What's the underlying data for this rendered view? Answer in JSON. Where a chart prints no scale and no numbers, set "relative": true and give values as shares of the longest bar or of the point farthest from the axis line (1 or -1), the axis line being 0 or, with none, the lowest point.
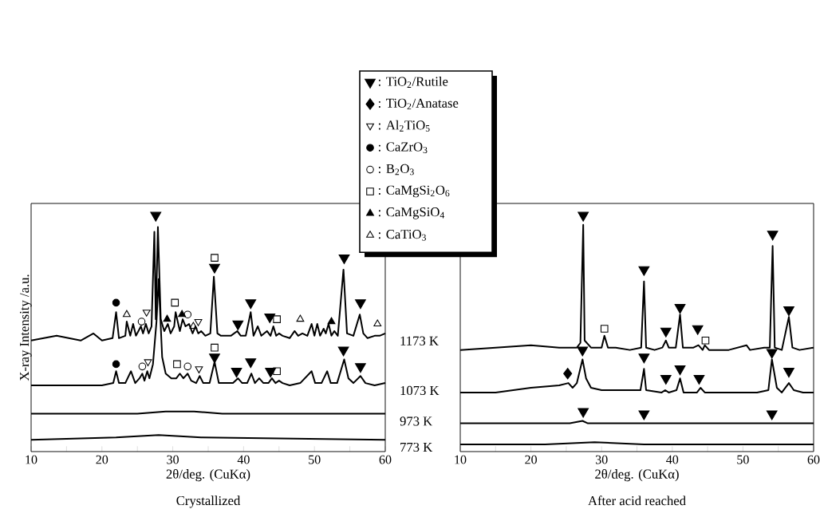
{
  "chart_data": [
    {
      "type": "line",
      "title": "Crystallized",
      "xlabel": "2θ/deg. (CuKα)",
      "ylabel": "X-ray Intensity /a.u.",
      "relative": true,
      "xlim": [
        10,
        60
      ],
      "xticks": [
        10,
        {
          "value": 15,
          "label": null
        },
        20,
        {
          "value": 25,
          "label": null
        },
        30,
        {
          "value": 35,
          "label": null
        },
        40,
        {
          "value": 45,
          "label": null
        },
        50,
        {
          "value": 55,
          "label": null
        },
        60
      ],
      "legend": "top right",
      "line_style": "solid",
      "grid": false,
      "series": [
        {
          "name": "1173 K",
          "color": "#000000",
          "x": [
            10,
            13.6,
            17,
            18.8,
            20,
            21.5,
            22.0,
            22.4,
            23.3,
            23.5,
            24,
            24.4,
            24.8,
            25.5,
            25.8,
            26.2,
            26.6,
            27.0,
            27.4,
            27.6,
            27.9,
            28.3,
            28.8,
            29.3,
            29.7,
            30.2,
            30.4,
            31.0,
            31.4,
            31.8,
            32.3,
            32.8,
            33.2,
            33.6,
            34.0,
            34.6,
            35.3,
            35.8,
            36.3,
            36.8,
            37.5,
            38.2,
            39.1,
            39.6,
            40.3,
            41.0,
            41.4,
            42.0,
            42.5,
            43.3,
            43.8,
            44.2,
            44.6,
            45.0,
            45.5,
            46.5,
            47.2,
            47.7,
            48.3,
            49.0,
            49.6,
            50.0,
            50.4,
            50.8,
            51.3,
            51.6,
            52.0,
            52.4,
            52.8,
            53.3,
            54.1,
            54.6,
            55.5,
            56.4,
            56.9,
            57.5,
            58.5,
            59.2,
            60
          ],
          "values": [
            0.47,
            0.49,
            0.47,
            0.5,
            0.47,
            0.48,
            0.59,
            0.48,
            0.49,
            0.55,
            0.49,
            0.54,
            0.49,
            0.53,
            0.5,
            0.54,
            0.5,
            0.53,
            0.93,
            0.56,
            0.95,
            0.56,
            0.51,
            0.54,
            0.5,
            0.53,
            0.59,
            0.51,
            0.56,
            0.53,
            0.54,
            0.5,
            0.53,
            0.5,
            0.51,
            0.49,
            0.5,
            0.74,
            0.5,
            0.49,
            0.49,
            0.49,
            0.51,
            0.49,
            0.49,
            0.59,
            0.49,
            0.53,
            0.49,
            0.51,
            0.49,
            0.53,
            0.49,
            0.5,
            0.49,
            0.48,
            0.51,
            0.49,
            0.5,
            0.49,
            0.54,
            0.49,
            0.54,
            0.49,
            0.52,
            0.5,
            0.54,
            0.49,
            0.51,
            0.49,
            0.77,
            0.5,
            0.49,
            0.58,
            0.5,
            0.48,
            0.49,
            0.49,
            0.5
          ]
        },
        {
          "name": "1073 K",
          "color": "#000000",
          "x": [
            10,
            15,
            20,
            21.6,
            22.0,
            22.4,
            23.3,
            24.1,
            24.7,
            25.3,
            25.7,
            26.0,
            26.4,
            26.7,
            27.2,
            27.7,
            28.0,
            28.5,
            29.0,
            29.8,
            30.5,
            31.0,
            31.5,
            32.1,
            32.6,
            33.3,
            33.8,
            34.3,
            35.2,
            35.9,
            36.5,
            37.5,
            38.5,
            39.2,
            39.8,
            40.5,
            41.1,
            41.6,
            42.2,
            42.8,
            43.5,
            44.0,
            44.5,
            45.0,
            45.5,
            46.5,
            48,
            49.6,
            50.1,
            51.0,
            51.8,
            52.3,
            53.2,
            54.2,
            54.8,
            55.5,
            56.5,
            57.2,
            58.5,
            60
          ],
          "values": [
            0.28,
            0.28,
            0.28,
            0.29,
            0.34,
            0.29,
            0.29,
            0.34,
            0.29,
            0.31,
            0.33,
            0.3,
            0.34,
            0.31,
            0.37,
            0.55,
            0.73,
            0.4,
            0.33,
            0.31,
            0.31,
            0.33,
            0.31,
            0.33,
            0.3,
            0.29,
            0.32,
            0.29,
            0.29,
            0.38,
            0.29,
            0.29,
            0.29,
            0.31,
            0.29,
            0.29,
            0.33,
            0.29,
            0.31,
            0.29,
            0.29,
            0.31,
            0.29,
            0.3,
            0.29,
            0.28,
            0.29,
            0.34,
            0.29,
            0.29,
            0.34,
            0.29,
            0.29,
            0.39,
            0.31,
            0.29,
            0.32,
            0.29,
            0.28,
            0.29
          ]
        },
        {
          "name": "973 K",
          "color": "#000000",
          "x": [
            10,
            20,
            25,
            29,
            33,
            37,
            45,
            60
          ],
          "values": [
            0.16,
            0.16,
            0.16,
            0.17,
            0.17,
            0.16,
            0.16,
            0.16
          ]
        },
        {
          "name": "773 K",
          "color": "#000000",
          "x": [
            10,
            22,
            28,
            34,
            60
          ],
          "values": [
            0.05,
            0.06,
            0.07,
            0.06,
            0.05
          ]
        },
        {
          "name": ": TiO$_{2}$/Rutile",
          "type": "scatter",
          "marker": "triangle-down",
          "color": "#000000",
          "x": [
            27.6,
            35.9,
            39.2,
            41.0,
            43.7,
            54.2,
            56.5,
            35.9,
            39.0,
            41.0,
            43.8,
            54.1,
            56.5
          ],
          "values": [
            1.0,
            0.78,
            0.54,
            0.63,
            0.57,
            0.82,
            0.63,
            0.4,
            0.34,
            0.38,
            0.34,
            0.43,
            0.36
          ]
        },
        {
          "name": ": Al$_{2}$TiO$_{5}$",
          "type": "scatter",
          "marker": "triangle-down-open",
          "color": "#000000",
          "x": [
            26.3,
            33.6,
            26.5,
            33.7
          ],
          "values": [
            0.59,
            0.55,
            0.38,
            0.35
          ]
        },
        {
          "name": ": CaZrO$_{3}$",
          "type": "scatter",
          "marker": "circle",
          "color": "#000000",
          "x": [
            22.0,
            22.0
          ],
          "values": [
            0.63,
            0.37
          ]
        },
        {
          "name": ": B$_{2}$O$_{3}$",
          "type": "scatter",
          "marker": "circle-open",
          "color": "#000000",
          "x": [
            25.6,
            32.1,
            25.7,
            32.1
          ],
          "values": [
            0.55,
            0.58,
            0.36,
            0.36
          ]
        },
        {
          "name": ": CaMgSi$_{2}$O$_{6}$",
          "type": "scatter",
          "marker": "square-open",
          "color": "#000000",
          "x": [
            35.9,
            30.3,
            44.7,
            35.9,
            30.6,
            44.7
          ],
          "values": [
            0.82,
            0.63,
            0.56,
            0.44,
            0.37,
            0.34
          ]
        },
        {
          "name": ": CaMgSiO$_{4}$",
          "type": "scatter",
          "marker": "triangle",
          "color": "#000000",
          "x": [
            29.2,
            31.3,
            52.4
          ],
          "values": [
            0.56,
            0.58,
            0.55
          ]
        },
        {
          "name": ": CaTiO$_{3}$",
          "type": "scatter",
          "marker": "triangle-open",
          "color": "#000000",
          "x": [
            23.5,
            32.9,
            48.0,
            58.9
          ],
          "values": [
            0.58,
            0.53,
            0.56,
            0.54
          ]
        }
      ]
    },
    {
      "type": "line",
      "title": "After acid reached",
      "xlabel": "2θ/deg. (CuKα)",
      "relative": true,
      "xlim": [
        10,
        60
      ],
      "xticks": [
        10,
        {
          "value": 15,
          "label": null
        },
        20,
        {
          "value": 25,
          "label": null
        },
        30,
        {
          "value": 35,
          "label": null
        },
        40,
        {
          "value": 45,
          "label": null
        },
        50,
        {
          "value": 55,
          "label": null
        },
        60
      ],
      "legend": "top left",
      "line_style": "solid",
      "grid": false,
      "series": [
        {
          "color": "#000000",
          "x": [
            10,
            15,
            20,
            24,
            26.5,
            27.0,
            27.4,
            27.6,
            28.5,
            30.0,
            30.4,
            30.9,
            32,
            34,
            35.6,
            36.0,
            36.3,
            37.5,
            38.6,
            39.1,
            39.5,
            40.5,
            41.1,
            41.5,
            43.0,
            43.7,
            44.3,
            44.6,
            45.2,
            48,
            50.5,
            51,
            53,
            53.8,
            54.2,
            54.5,
            55.5,
            56.5,
            57.0,
            58,
            60
          ],
          "values": [
            0.43,
            0.44,
            0.45,
            0.44,
            0.44,
            0.46,
            0.96,
            0.47,
            0.44,
            0.44,
            0.49,
            0.44,
            0.44,
            0.43,
            0.44,
            0.72,
            0.44,
            0.43,
            0.44,
            0.47,
            0.44,
            0.44,
            0.58,
            0.44,
            0.44,
            0.45,
            0.43,
            0.45,
            0.43,
            0.43,
            0.45,
            0.43,
            0.44,
            0.44,
            0.87,
            0.44,
            0.43,
            0.57,
            0.44,
            0.43,
            0.44
          ]
        },
        {
          "color": "#000000",
          "x": [
            10,
            15,
            20,
            24,
            25.3,
            25.9,
            26.5,
            27.3,
            27.8,
            28.5,
            30,
            33,
            35.5,
            36.0,
            36.3,
            38.5,
            39.0,
            39.5,
            40.6,
            41.1,
            41.6,
            43.5,
            44.0,
            44.6,
            47,
            48.5,
            52,
            53.6,
            54.1,
            54.8,
            55.5,
            56.5,
            57.2,
            58.5,
            60
          ],
          "values": [
            0.25,
            0.25,
            0.27,
            0.28,
            0.29,
            0.27,
            0.29,
            0.39,
            0.31,
            0.27,
            0.26,
            0.26,
            0.26,
            0.35,
            0.26,
            0.25,
            0.26,
            0.25,
            0.26,
            0.31,
            0.25,
            0.25,
            0.27,
            0.25,
            0.25,
            0.25,
            0.25,
            0.26,
            0.39,
            0.27,
            0.25,
            0.29,
            0.26,
            0.25,
            0.25
          ]
        },
        {
          "color": "#000000",
          "x": [
            10,
            24,
            25.5,
            27.3,
            28,
            36,
            54.2,
            60
          ],
          "values": [
            0.12,
            0.12,
            0.12,
            0.13,
            0.12,
            0.12,
            0.12,
            0.12
          ]
        },
        {
          "color": "#000000",
          "x": [
            10,
            22,
            29,
            36,
            60
          ],
          "values": [
            0.03,
            0.03,
            0.04,
            0.03,
            0.03
          ]
        },
        {
          "type": "scatter",
          "marker": "triangle-down",
          "color": "#000000",
          "x": [
            27.4,
            36.0,
            39.1,
            41.1,
            43.6,
            54.2,
            56.5,
            27.3,
            36.0,
            39.1,
            41.1,
            43.8,
            54.1,
            56.5,
            27.4,
            36.0,
            54.1
          ],
          "values": [
            1.0,
            0.77,
            0.51,
            0.61,
            0.52,
            0.92,
            0.6,
            0.43,
            0.4,
            0.31,
            0.35,
            0.31,
            0.42,
            0.34,
            0.17,
            0.16,
            0.16
          ]
        },
        {
          "name": ": TiO$_{2}$/Anatase",
          "type": "scatter",
          "marker": "diamond",
          "color": "#000000",
          "x": [
            25.2
          ],
          "values": [
            0.33
          ]
        },
        {
          "type": "scatter",
          "marker": "square-open",
          "color": "#000000",
          "x": [
            30.4,
            44.7
          ],
          "values": [
            0.52,
            0.47
          ]
        }
      ]
    }
  ]
}
